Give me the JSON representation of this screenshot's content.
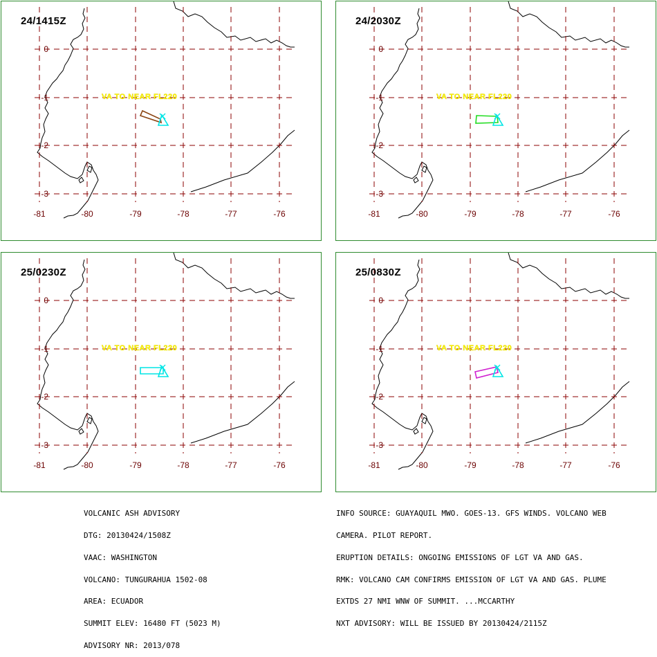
{
  "panels": [
    {
      "id": "p1",
      "time": "24/1415Z",
      "label": "VA TO NEAR FL220",
      "plume_color": "#8b4513"
    },
    {
      "id": "p2",
      "time": "24/2030Z",
      "label": "VA TO NEAR FL220",
      "plume_color": "#22dd22"
    },
    {
      "id": "p3",
      "time": "25/0230Z",
      "label": "VA TO NEAR FL220",
      "plume_color": "#00e5e5"
    },
    {
      "id": "p4",
      "time": "25/0830Z",
      "label": "VA TO NEAR FL220",
      "plume_color": "#d020d0"
    }
  ],
  "map": {
    "lon_ticks": [
      -81,
      -80,
      -79,
      -78,
      -77,
      -76
    ],
    "lon_labels": [
      "-81",
      "-80",
      "-79",
      "-78",
      "-77",
      "-76"
    ],
    "lat_ticks": [
      0,
      -1,
      -2,
      -3
    ],
    "lat_labels": [
      "0",
      "-1",
      "-2",
      "-3"
    ],
    "volcano_color": "#00e5e5",
    "grid_color": "#8b0000",
    "coast_color": "#000000",
    "frame_color": "#2e8b2e",
    "label_color": "#ffff00"
  },
  "advisory_left": [
    "VOLCANIC ASH ADVISORY",
    "DTG: 20130424/1508Z",
    "VAAC: WASHINGTON",
    "VOLCANO: TUNGURAHUA 1502-08",
    "AREA: ECUADOR",
    "SUMMIT ELEV: 16480 FT (5023 M)",
    "ADVISORY NR: 2013/078"
  ],
  "advisory_right": [
    "INFO SOURCE: GUAYAQUIL MWO. GOES-13. GFS WINDS. VOLCANO WEB",
    "CAMERA. PILOT REPORT.",
    "ERUPTION DETAILS: ONGOING EMISSIONS OF LGT VA AND GAS.",
    "RMK: VOLCANO CAM CONFIRMS EMISSION OF LGT VA AND GAS. PLUME",
    "EXTDS 27 NMI WNW OF SUMMIT. ...MCCARTHY",
    "NXT ADVISORY: WILL BE ISSUED BY 20130424/2115Z"
  ]
}
